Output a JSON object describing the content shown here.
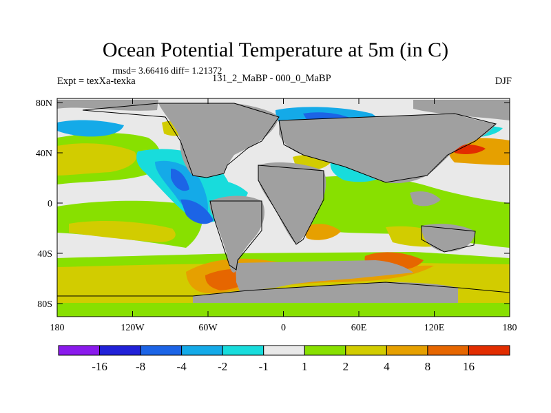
{
  "title": "Ocean Potential Temperature at 5m (in C)",
  "stats": "rmsd= 3.66416 diff= 1.21372",
  "experiment": "Expt = texXa-texka",
  "difference": "131_2_MaBP - 000_0_MaBP",
  "season": "DJF",
  "lat_ticks": [
    "80N",
    "40N",
    "0",
    "40S",
    "80S"
  ],
  "lon_ticks": [
    "180",
    "120W",
    "60W",
    "0",
    "60E",
    "120E",
    "180"
  ],
  "colorbar": {
    "labels": [
      "-16",
      "-8",
      "-4",
      "-2",
      "-1",
      "1",
      "2",
      "4",
      "8",
      "16"
    ],
    "colors": [
      "#8a1aec",
      "#2121d8",
      "#1c64e6",
      "#14aae8",
      "#18dcdc",
      "#e9e9e9",
      "#88e000",
      "#d2cc00",
      "#e6a000",
      "#e66600",
      "#e22d00"
    ]
  },
  "colors": {
    "land": "#a0a0a0",
    "near_zero": "#e9e9e9",
    "coast": "#000000"
  }
}
